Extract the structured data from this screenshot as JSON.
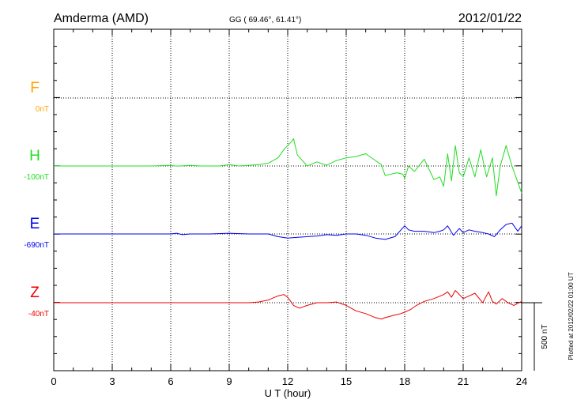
{
  "header": {
    "station": "Amderma (AMD)",
    "coords": "GG ( 69.46°,  61.41°)",
    "date": "2012/01/22"
  },
  "plot_note": "Plotted at 2012/02/22 01:00 UT",
  "scale_label": "500 nT",
  "chart_data": {
    "type": "line",
    "xlabel": "U T (hour)",
    "xlim": [
      0,
      24
    ],
    "xticks": [
      "0",
      "3",
      "6",
      "9",
      "12",
      "15",
      "18",
      "21",
      "24"
    ],
    "y_unit": "nT",
    "scale_bar_nT": 500,
    "grid": true,
    "series": [
      {
        "name": "F",
        "baseline": "0nT",
        "color": "#ffa500",
        "x": [],
        "values": []
      },
      {
        "name": "H",
        "baseline": "-100nT",
        "color": "#22dd22",
        "x": [
          0,
          1,
          2,
          3,
          4,
          5,
          6,
          6.2,
          6.5,
          7,
          7.5,
          8,
          8.5,
          9,
          9.5,
          10,
          10.5,
          11,
          11.5,
          11.8,
          12,
          12.2,
          12.3,
          12.5,
          13,
          13.5,
          14,
          14.5,
          15,
          15.5,
          16,
          16.5,
          16.8,
          17,
          17.3,
          17.6,
          17.9,
          18,
          18.2,
          18.5,
          19,
          19.5,
          19.8,
          20,
          20.2,
          20.4,
          20.6,
          20.8,
          21,
          21.3,
          21.6,
          21.9,
          22.2,
          22.5,
          22.7,
          22.9,
          23.2,
          23.5,
          23.8,
          24
        ],
        "values": [
          0,
          0,
          0,
          0,
          0,
          0,
          5,
          0,
          0,
          5,
          0,
          0,
          0,
          10,
          0,
          5,
          10,
          20,
          60,
          120,
          150,
          180,
          200,
          80,
          0,
          30,
          5,
          40,
          60,
          70,
          90,
          40,
          10,
          -70,
          -60,
          -50,
          -60,
          -90,
          0,
          -40,
          50,
          -100,
          -80,
          -150,
          90,
          -110,
          150,
          -50,
          -80,
          60,
          -80,
          120,
          -80,
          60,
          -220,
          0,
          150,
          0,
          -120,
          -200
        ]
      },
      {
        "name": "E",
        "baseline": "-690nT",
        "color": "#0000ee",
        "x": [
          0,
          1,
          2,
          3,
          4,
          5,
          6,
          6.3,
          6.6,
          7,
          8,
          9,
          10,
          11,
          11.5,
          12,
          12.5,
          13,
          13.5,
          14,
          14.5,
          15,
          15.5,
          16,
          16.5,
          17,
          17.5,
          18,
          18.2,
          18.5,
          19,
          19.5,
          19.8,
          20,
          20.2,
          20.5,
          20.8,
          21,
          21.3,
          21.6,
          22,
          22.3,
          22.6,
          22.9,
          23.2,
          23.5,
          23.8,
          24
        ],
        "values": [
          0,
          0,
          0,
          0,
          0,
          0,
          0,
          5,
          -5,
          0,
          0,
          5,
          0,
          0,
          -20,
          -30,
          -25,
          -20,
          -15,
          -5,
          -10,
          0,
          0,
          -10,
          -30,
          -40,
          -20,
          60,
          30,
          20,
          20,
          10,
          20,
          30,
          60,
          -10,
          40,
          10,
          30,
          20,
          10,
          0,
          -20,
          30,
          70,
          80,
          20,
          60
        ]
      },
      {
        "name": "Z",
        "baseline": "-40nT",
        "color": "#ee0000",
        "x": [
          0,
          1,
          2,
          3,
          4,
          5,
          6,
          7,
          8,
          9,
          10,
          10.5,
          11,
          11.5,
          11.8,
          12,
          12.3,
          12.6,
          13,
          13.5,
          14,
          14.5,
          15,
          15.5,
          16,
          16.5,
          16.8,
          17,
          17.5,
          17.8,
          18,
          18.3,
          18.6,
          19,
          19.5,
          20,
          20.2,
          20.4,
          20.6,
          20.8,
          21,
          21.3,
          21.6,
          22,
          22.3,
          22.5,
          22.7,
          23,
          23.3,
          23.6,
          24
        ],
        "values": [
          0,
          0,
          0,
          0,
          0,
          0,
          0,
          0,
          0,
          0,
          0,
          5,
          20,
          50,
          60,
          40,
          -20,
          -40,
          -20,
          0,
          0,
          5,
          -20,
          -60,
          -80,
          -110,
          -120,
          -110,
          -90,
          -80,
          -70,
          -50,
          -20,
          10,
          30,
          60,
          80,
          40,
          90,
          60,
          30,
          50,
          70,
          0,
          80,
          10,
          -10,
          30,
          0,
          -20,
          10
        ]
      }
    ]
  }
}
